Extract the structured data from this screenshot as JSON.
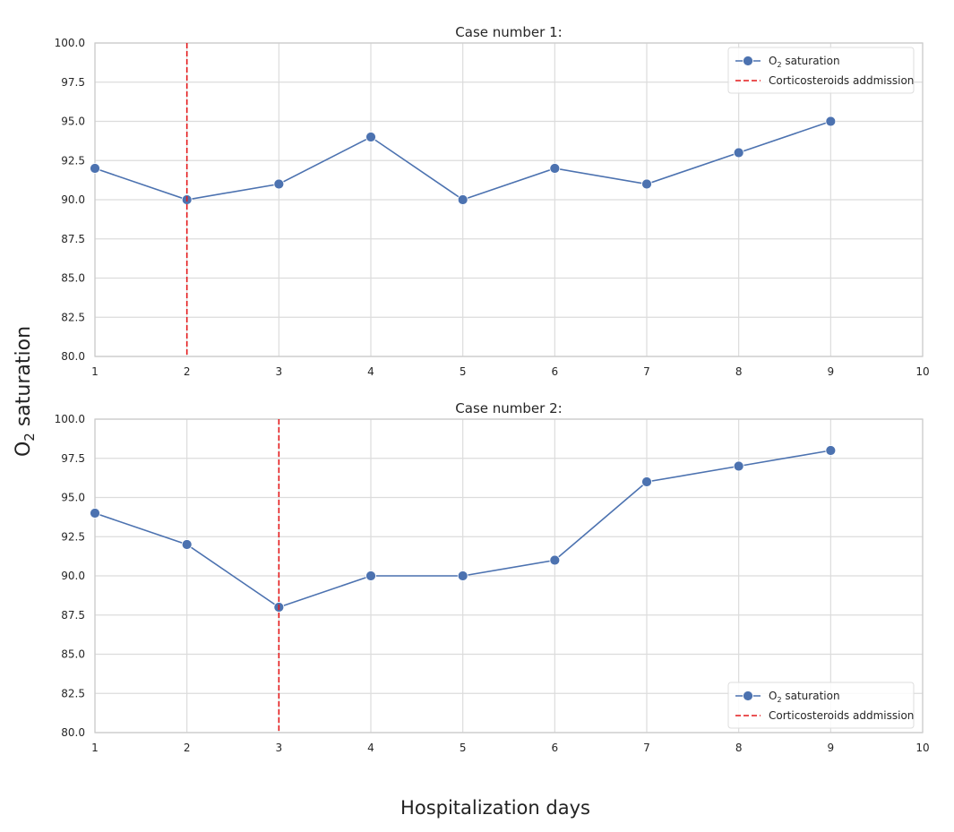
{
  "figure": {
    "ylabel_main": "O",
    "ylabel_sub": "2",
    "ylabel_rest": " saturation",
    "xlabel": "Hospitalization days"
  },
  "colors": {
    "series": "#4c72b0",
    "vline": "#e41a1c",
    "grid": "#dcdcdc",
    "spine": "#cccccc",
    "text": "#262626"
  },
  "chart_data": [
    {
      "type": "line",
      "title": "Case number 1:",
      "x": [
        1,
        2,
        3,
        4,
        5,
        6,
        7,
        8,
        9
      ],
      "series": [
        {
          "name": "O2 saturation",
          "name_main": "O",
          "name_sub": "2",
          "name_rest": " saturation",
          "values": [
            92,
            90,
            91,
            94,
            90,
            92,
            91,
            93,
            95
          ]
        }
      ],
      "vline": {
        "x": 2,
        "label": "Corticosteroids addmission"
      },
      "xlim": [
        1,
        10
      ],
      "ylim": [
        80,
        100
      ],
      "xticks": [
        "1",
        "2",
        "3",
        "4",
        "5",
        "6",
        "7",
        "8",
        "9",
        "10"
      ],
      "yticks": [
        "80.0",
        "82.5",
        "85.0",
        "87.5",
        "90.0",
        "92.5",
        "95.0",
        "97.5",
        "100.0"
      ],
      "grid": true,
      "legend": "upper right"
    },
    {
      "type": "line",
      "title": "Case number 2:",
      "x": [
        1,
        2,
        3,
        4,
        5,
        6,
        7,
        8,
        9
      ],
      "series": [
        {
          "name": "O2 saturation",
          "name_main": "O",
          "name_sub": "2",
          "name_rest": " saturation",
          "values": [
            94,
            92,
            88,
            90,
            90,
            91,
            96,
            97,
            98
          ]
        }
      ],
      "vline": {
        "x": 3,
        "label": "Corticosteroids addmission"
      },
      "xlim": [
        1,
        10
      ],
      "ylim": [
        80,
        100
      ],
      "xticks": [
        "1",
        "2",
        "3",
        "4",
        "5",
        "6",
        "7",
        "8",
        "9",
        "10"
      ],
      "yticks": [
        "80.0",
        "82.5",
        "85.0",
        "87.5",
        "90.0",
        "92.5",
        "95.0",
        "97.5",
        "100.0"
      ],
      "grid": true,
      "legend": "lower right"
    }
  ]
}
